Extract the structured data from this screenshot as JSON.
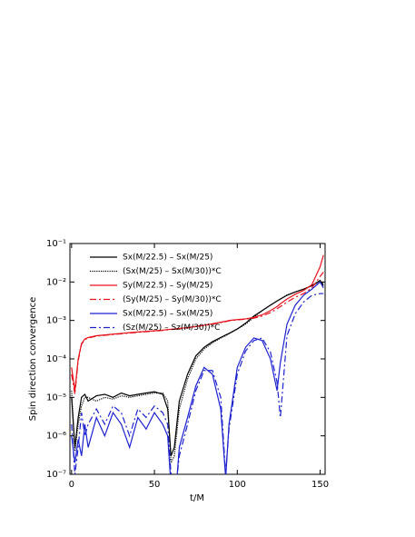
{
  "chart_data": {
    "type": "line",
    "x_label": "t/M",
    "y_label": "Spin direction convergence",
    "log_y": true,
    "grid": false,
    "legend": "upper left",
    "xlim": [
      -1,
      153
    ],
    "ylim": [
      1e-07,
      0.1
    ],
    "xticks": [
      0,
      50,
      100,
      150
    ],
    "yticks": [
      {
        "value": 1e-07,
        "label": "10⁻⁷"
      },
      {
        "value": 1e-06,
        "label": "10⁻⁶"
      },
      {
        "value": 1e-05,
        "label": "10⁻⁵"
      },
      {
        "value": 0.0001,
        "label": "10⁻⁴"
      },
      {
        "value": 0.001,
        "label": "10⁻³"
      },
      {
        "value": 0.01,
        "label": "10⁻²"
      },
      {
        "value": 0.1,
        "label": "10⁻¹"
      }
    ],
    "x": [
      0,
      2,
      4,
      6,
      8,
      10,
      15,
      20,
      25,
      30,
      35,
      40,
      45,
      50,
      55,
      58,
      60,
      62,
      65,
      70,
      75,
      80,
      85,
      90,
      93,
      95,
      100,
      105,
      110,
      115,
      120,
      124,
      126,
      130,
      135,
      140,
      145,
      150,
      152
    ],
    "series": [
      {
        "name": "Sx(M/22.5) – Sx(M/25)",
        "color": "#000000",
        "dash": "solid",
        "values": [
          1e-05,
          5e-07,
          3e-06,
          1e-05,
          1.2e-05,
          8e-06,
          1.1e-05,
          1.2e-05,
          1e-05,
          1.3e-05,
          1.1e-05,
          1.2e-05,
          1.3e-05,
          1.4e-05,
          1.2e-05,
          5e-06,
          3e-07,
          5e-07,
          8e-06,
          4e-05,
          0.00012,
          0.0002,
          0.00028,
          0.00036,
          0.00042,
          0.00046,
          0.0006,
          0.00085,
          0.0013,
          0.0018,
          0.0025,
          0.0032,
          0.0036,
          0.0045,
          0.0055,
          0.0065,
          0.008,
          0.011,
          0.008
        ]
      },
      {
        "name": "(Sx(M/25) – Sx(M/30))*C",
        "color": "#000000",
        "dash": "dotted",
        "values": [
          1.5e-05,
          4e-07,
          2e-06,
          6e-06,
          1e-05,
          1e-05,
          8e-06,
          1e-05,
          9e-06,
          1.1e-05,
          1e-05,
          1.1e-05,
          1.2e-05,
          1.3e-05,
          1.3e-05,
          8e-06,
          2e-07,
          3e-07,
          5e-06,
          3e-05,
          0.0001,
          0.00018,
          0.00026,
          0.00035,
          0.0004,
          0.00045,
          0.0006,
          0.0008,
          0.0012,
          0.0018,
          0.0025,
          0.0032,
          0.0036,
          0.0046,
          0.0055,
          0.0065,
          0.008,
          0.01,
          0.009
        ]
      },
      {
        "name": "Sy(M/22.5) – Sy(M/25)",
        "color": "#e8101a",
        "dash": "solid",
        "values": [
          6e-05,
          1.5e-05,
          0.0001,
          0.00025,
          0.00033,
          0.00036,
          0.0004,
          0.00042,
          0.00044,
          0.00046,
          0.00048,
          0.0005,
          0.00052,
          0.00054,
          0.00056,
          0.00058,
          0.00059,
          0.0006,
          0.00062,
          0.00065,
          0.0007,
          0.00075,
          0.00082,
          0.0009,
          0.00095,
          0.001,
          0.00105,
          0.0011,
          0.0012,
          0.0014,
          0.0018,
          0.0023,
          0.0027,
          0.0036,
          0.0048,
          0.006,
          0.0085,
          0.025,
          0.05
        ]
      },
      {
        "name": "(Sy(M/25) – Sy(M/30))*C",
        "color": "#e8101a",
        "dash": "dashdot",
        "values": [
          4e-05,
          1.2e-05,
          9e-05,
          0.00024,
          0.00032,
          0.00035,
          0.00039,
          0.00041,
          0.00043,
          0.00045,
          0.00047,
          0.00049,
          0.00051,
          0.00053,
          0.00055,
          0.00057,
          0.00058,
          0.00059,
          0.00061,
          0.00064,
          0.00069,
          0.00074,
          0.0008,
          0.00088,
          0.00093,
          0.00098,
          0.00103,
          0.00108,
          0.00115,
          0.0013,
          0.0016,
          0.002,
          0.0023,
          0.003,
          0.004,
          0.005,
          0.007,
          0.014,
          0.018
        ]
      },
      {
        "name": "Sx(M/22.5) – Sx(M/25)",
        "color": "#1c22d0",
        "dash": "solid",
        "values": [
          1e-06,
          2e-07,
          8e-07,
          3e-07,
          2e-06,
          5e-07,
          3e-06,
          1e-06,
          4e-06,
          2e-06,
          5e-07,
          3e-06,
          1.5e-06,
          4e-06,
          2e-06,
          1e-06,
          5e-08,
          1e-08,
          5e-07,
          3e-06,
          2e-05,
          6e-05,
          4e-05,
          5e-06,
          8e-08,
          2e-06,
          6e-05,
          0.0002,
          0.00035,
          0.0003,
          0.0001,
          1.5e-05,
          8e-05,
          0.0008,
          0.0025,
          0.0045,
          0.0065,
          0.01,
          0.007
        ]
      },
      {
        "name": "(Sz(M/25) – Sz(M/30))*C",
        "color": "#1c22d0",
        "dash": "dashdot",
        "values": [
          2e-06,
          1e-07,
          5e-07,
          4e-06,
          1e-06,
          2e-06,
          5e-06,
          2e-06,
          6e-06,
          4e-06,
          1e-06,
          5e-06,
          3e-06,
          6e-06,
          4e-06,
          2e-06,
          1e-07,
          2e-08,
          3e-07,
          2e-06,
          1.5e-05,
          5e-05,
          5e-05,
          1e-05,
          1e-07,
          1.5e-06,
          4e-05,
          0.00016,
          0.0003,
          0.00035,
          0.00015,
          2.5e-05,
          3e-06,
          0.0004,
          0.0015,
          0.003,
          0.0045,
          0.005,
          0.005
        ]
      }
    ]
  }
}
